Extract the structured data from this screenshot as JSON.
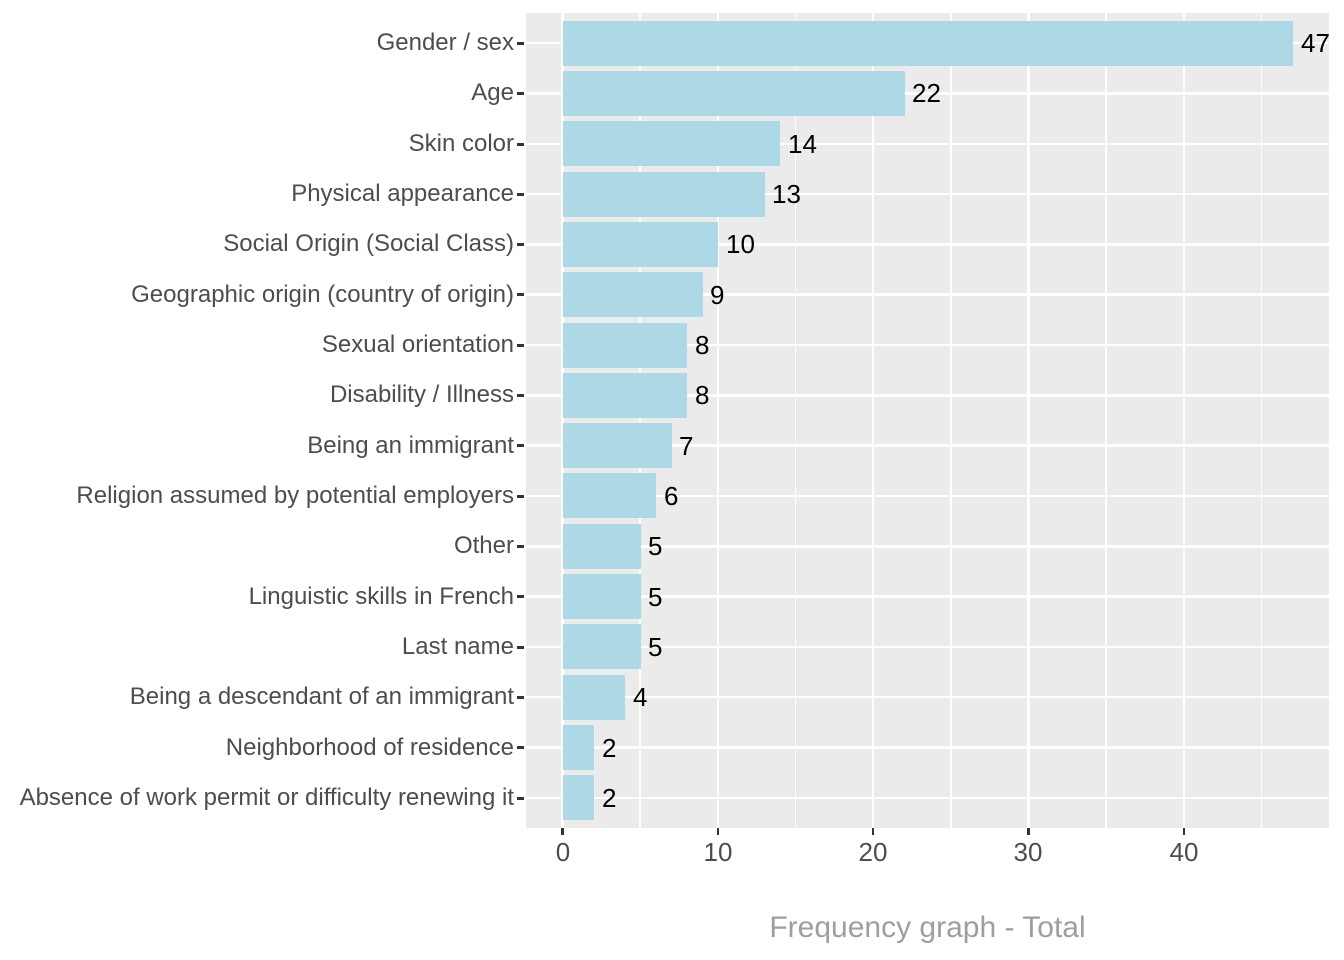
{
  "chart_data": {
    "type": "bar",
    "orientation": "horizontal",
    "title": "",
    "xlabel": "Frequency graph - Total",
    "ylabel": "",
    "categories": [
      "Gender / sex",
      "Age",
      "Skin color",
      "Physical appearance",
      "Social Origin (Social Class)",
      "Geographic origin (country of origin)",
      "Sexual orientation",
      "Disability / Illness",
      "Being an immigrant",
      "Religion assumed by potential employers",
      "Other",
      "Linguistic skills in French",
      "Last name",
      "Being a descendant of an immigrant",
      "Neighborhood of residence",
      "Absence of work permit or difficulty renewing it"
    ],
    "values": [
      47,
      22,
      14,
      13,
      10,
      9,
      8,
      8,
      7,
      6,
      5,
      5,
      5,
      4,
      2,
      2
    ],
    "bar_value_labels": [
      "47",
      "22",
      "14",
      "13",
      "10",
      "9",
      "8",
      "8",
      "7",
      "6",
      "5",
      "5",
      "5",
      "4",
      "2",
      "2"
    ],
    "xlim": [
      -2.35,
      49.35
    ],
    "x_major_ticks": [
      0,
      10,
      20,
      30,
      40
    ],
    "x_major_tick_labels": [
      "0",
      "10",
      "20",
      "30",
      "40"
    ],
    "x_minor_ticks": [
      5,
      15,
      25,
      35,
      45
    ],
    "grid": true,
    "legend_position": "none"
  },
  "colors": {
    "bar_fill": "#ADD8E6",
    "panel_background": "#EBEBEB",
    "gridline": "#FFFFFF",
    "axis_text": "#4D4D4D",
    "tick_mark": "#333333",
    "value_label": "#000000",
    "axis_title": "#9E9E9E",
    "page_background": "#FFFFFF"
  }
}
